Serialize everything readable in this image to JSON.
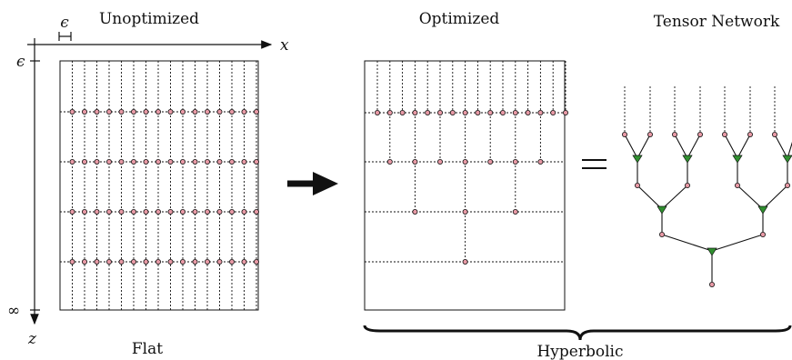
{
  "labels": {
    "unoptimized": "Unoptimized",
    "optimized": "Optimized",
    "tensor_network": "Tensor Network",
    "flat": "Flat",
    "hyperbolic": "Hyperbolic",
    "epsilon_top": "ϵ",
    "epsilon_axis": "ϵ",
    "infinity": "∞",
    "x_axis": "x",
    "z_axis": "z",
    "equals": "="
  },
  "colors": {
    "node_fill": "#e89aa6",
    "triangle_fill": "#2f8f2f",
    "line": "#111111"
  }
}
